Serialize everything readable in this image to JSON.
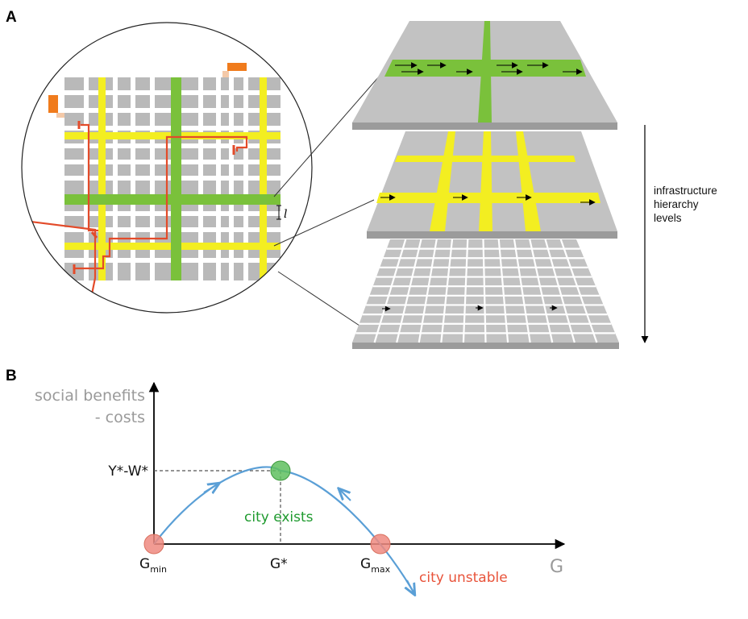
{
  "panels": {
    "a": "A",
    "b": "B"
  },
  "hierarchy": {
    "lines": [
      "infrastructure",
      "hierarchy",
      "levels"
    ]
  },
  "zoom": {
    "spacing_label": "l"
  },
  "graph": {
    "y_label": [
      "social benefits",
      "- costs"
    ],
    "x_label": "G",
    "y_tick": "Y*-W*",
    "x_ticks": {
      "gmin_main": "G",
      "gmin_sub": "min",
      "gstar": "G*",
      "gmax_main": "G",
      "gmax_sub": "max"
    },
    "annotations": {
      "exists": "city exists",
      "unstable": "city unstable"
    }
  },
  "colors": {
    "road_green": "#7ac13b",
    "road_yellow": "#f3ee21",
    "block_gray": "#b9b9b9",
    "route_red": "#e34b2a",
    "building_orange": "#f07b1c",
    "curve_blue": "#5a9fd6",
    "stable_green": "#5fbf5f",
    "unstable_red": "#ef8a80"
  }
}
